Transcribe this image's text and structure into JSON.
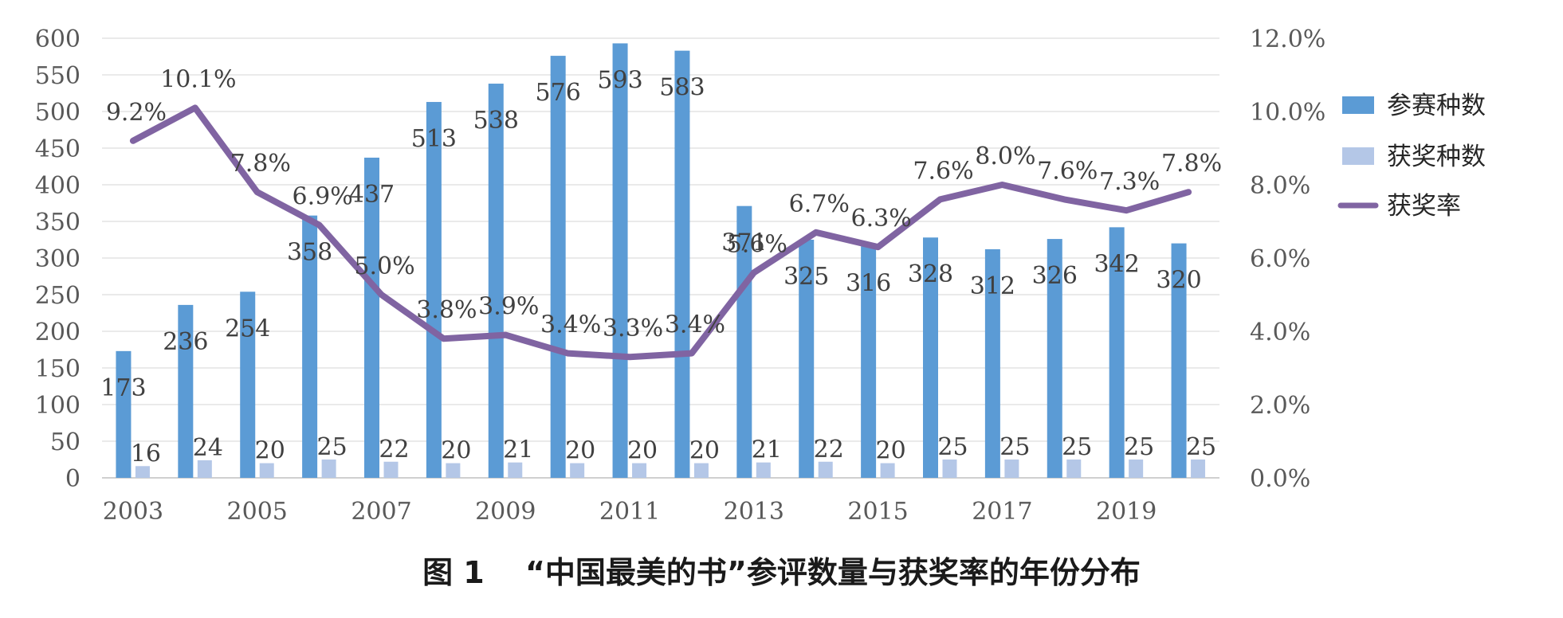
{
  "caption": "图 1　 “中国最美的书”参评数量与获奖率的年份分布",
  "chart_data": {
    "type": "bar",
    "x": [
      2003,
      2004,
      2005,
      2006,
      2007,
      2008,
      2009,
      2010,
      2011,
      2012,
      2013,
      2014,
      2015,
      2016,
      2017,
      2018,
      2019,
      2020
    ],
    "x_tick_labels": [
      "2003",
      "2005",
      "2007",
      "2009",
      "2011",
      "2013",
      "2015",
      "2017",
      "2019"
    ],
    "y_left_ticks": [
      "0",
      "50",
      "100",
      "150",
      "200",
      "250",
      "300",
      "350",
      "400",
      "450",
      "500",
      "550",
      "600"
    ],
    "y_right_ticks": [
      "0.0%",
      "2.0%",
      "4.0%",
      "6.0%",
      "8.0%",
      "10.0%",
      "12.0%"
    ],
    "ylim_left": [
      0,
      600
    ],
    "ylim_right": [
      0,
      12
    ],
    "grid": true,
    "legend_position": "right",
    "series": [
      {
        "name": "参赛种数",
        "kind": "bar",
        "axis": "left",
        "color": "#5b9bd5",
        "values": [
          173,
          236,
          254,
          358,
          437,
          513,
          538,
          576,
          593,
          583,
          371,
          325,
          316,
          328,
          312,
          326,
          342,
          320
        ],
        "labels": [
          "173",
          "236",
          "254",
          "358",
          "437",
          "513",
          "538",
          "576",
          "593",
          "583",
          "371",
          "325",
          "316",
          "328",
          "312",
          "326",
          "342",
          "320"
        ]
      },
      {
        "name": "获奖种数",
        "kind": "bar",
        "axis": "left",
        "color": "#b4c7e7",
        "values": [
          16,
          24,
          20,
          25,
          22,
          20,
          21,
          20,
          20,
          20,
          21,
          22,
          20,
          25,
          25,
          25,
          25,
          25
        ],
        "labels": [
          "16",
          "24",
          "20",
          "25",
          "22",
          "20",
          "21",
          "20",
          "20",
          "20",
          "21",
          "22",
          "20",
          "25",
          "25",
          "25",
          "25",
          "25"
        ]
      },
      {
        "name": "获奖率",
        "kind": "line",
        "axis": "right",
        "color": "#8064a2",
        "values": [
          9.2,
          10.1,
          7.8,
          6.9,
          5.0,
          3.8,
          3.9,
          3.4,
          3.3,
          3.4,
          5.6,
          6.7,
          6.3,
          7.6,
          8.0,
          7.6,
          7.3,
          7.8
        ],
        "labels": [
          "9.2%",
          "10.1%",
          "7.8%",
          "6.9%",
          "5.0%",
          "3.8%",
          "3.9%",
          "3.4%",
          "3.3%",
          "3.4%",
          "5.6%",
          "6.7%",
          "6.3%",
          "7.6%",
          "8.0%",
          "7.6%",
          "7.3%",
          "7.8%"
        ]
      }
    ]
  }
}
